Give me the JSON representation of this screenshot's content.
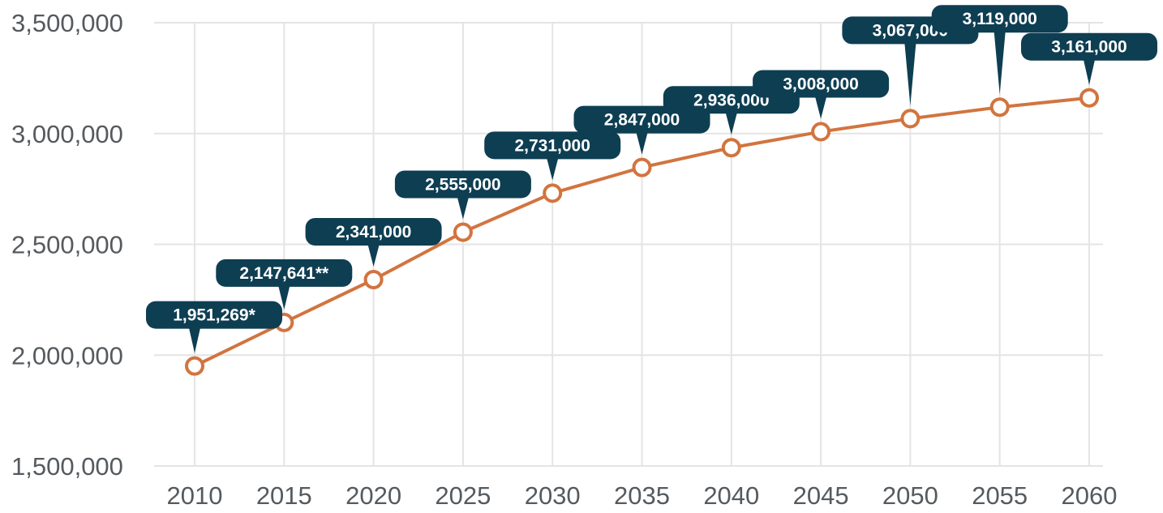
{
  "chart_data": {
    "type": "line",
    "title": "",
    "xlabel": "",
    "ylabel": "",
    "categories": [
      "2010",
      "2015",
      "2020",
      "2025",
      "2030",
      "2035",
      "2040",
      "2045",
      "2050",
      "2055",
      "2060"
    ],
    "values": [
      1951269,
      2147641,
      2341000,
      2555000,
      2731000,
      2847000,
      2936000,
      3008000,
      3067000,
      3119000,
      3161000
    ],
    "data_labels": [
      "1,951,269*",
      "2,147,641**",
      "2,341,000",
      "2,555,000",
      "2,731,000",
      "2,847,000",
      "2,936,000",
      "3,008,000",
      "3,067,000",
      "3,119,000",
      "3,161,000"
    ],
    "ylim": [
      1500000,
      3500000
    ],
    "yticks": [
      1500000,
      2000000,
      2500000,
      3000000,
      3500000
    ],
    "ytick_labels": [
      "1,500,000",
      "2,000,000",
      "2,500,000",
      "3,000,000",
      "3,500,000"
    ],
    "grid": true,
    "colors": {
      "line": "#d2743f",
      "marker_fill": "#ffffff",
      "label_bg": "#0e3e52",
      "label_text": "#ffffff",
      "grid": "#e4e4e4",
      "tick_text": "#555a5e"
    }
  }
}
